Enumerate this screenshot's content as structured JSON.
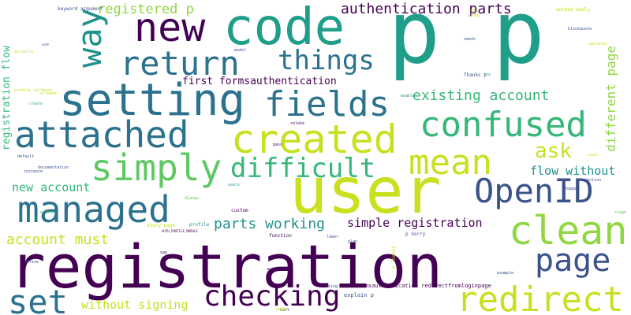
{
  "cloud": {
    "palette": {
      "purple": "#440154",
      "indigo": "#3b528b",
      "blue": "#31688e",
      "steel": "#2c728e",
      "teal": "#21918c",
      "sea": "#1f9e89",
      "jade": "#35b779",
      "green": "#5ec962",
      "lime": "#90d743",
      "yellow": "#c8e020",
      "gold": "#fde725"
    },
    "words": [
      {
        "text": "p p",
        "color": "#1f9e89"
      },
      {
        "text": "registration",
        "color": "#440154"
      },
      {
        "text": "user",
        "color": "#c8e020"
      },
      {
        "text": "code",
        "color": "#1f9e89"
      },
      {
        "text": "new",
        "color": "#440154"
      },
      {
        "text": "setting",
        "color": "#2c728e"
      },
      {
        "text": "return",
        "color": "#2c728e"
      },
      {
        "text": "things",
        "color": "#2c728e"
      },
      {
        "text": "fields",
        "color": "#2c728e"
      },
      {
        "text": "attached",
        "color": "#2c728e"
      },
      {
        "text": "created",
        "color": "#c8e020"
      },
      {
        "text": "confused",
        "color": "#35b779"
      },
      {
        "text": "simply",
        "color": "#5ec962"
      },
      {
        "text": "difficult",
        "color": "#35b779"
      },
      {
        "text": "mean",
        "color": "#c8e020"
      },
      {
        "text": "managed",
        "color": "#2c728e"
      },
      {
        "text": "OpenID",
        "color": "#3b528b"
      },
      {
        "text": "clean",
        "color": "#90d743"
      },
      {
        "text": "page",
        "color": "#3b528b"
      },
      {
        "text": "set",
        "color": "#2c728e"
      },
      {
        "text": "checking",
        "color": "#440154"
      },
      {
        "text": "redirect",
        "color": "#c8e020"
      },
      {
        "text": "way",
        "color": "#21918c"
      },
      {
        "text": "registered p",
        "color": "#90d743"
      },
      {
        "text": "authentication parts",
        "color": "#440154"
      },
      {
        "text": "existing account",
        "color": "#35b779"
      },
      {
        "text": "ask",
        "color": "#c8e020"
      },
      {
        "text": "flow without",
        "color": "#21918c"
      },
      {
        "text": "first formsauthentication",
        "color": "#440154"
      },
      {
        "text": "new account",
        "color": "#35b779"
      },
      {
        "text": "parts working",
        "color": "#21918c"
      },
      {
        "text": "simple registration",
        "color": "#440154"
      },
      {
        "text": "account must",
        "color": "#c8e020"
      },
      {
        "text": "without signing",
        "color": "#c8e020"
      },
      {
        "text": "different page",
        "color": "#90d743"
      },
      {
        "text": "registration flow",
        "color": "#35b779"
      },
      {
        "text": "formsauthentication redirectfromloginpage",
        "color": "#440154"
      },
      {
        "text": "explain p",
        "color": "#3b528b"
      },
      {
        "text": "keyword argument",
        "color": "#3b528b"
      },
      {
        "text": "worded badly",
        "color": "#c8e020"
      },
      {
        "text": "Thanks p",
        "color": "#3b528b"
      },
      {
        "text": "p Sorry",
        "color": "#3b528b"
      },
      {
        "text": "p Thanks",
        "color": "#c8e020"
      },
      {
        "text": "function",
        "color": "#440154"
      },
      {
        "text": "custom",
        "color": "#440154"
      },
      {
        "text": "profile",
        "color": "#21918c"
      },
      {
        "text": "every page",
        "color": "#c8e020"
      },
      {
        "text": "model",
        "color": "#3b528b"
      },
      {
        "text": "blockquote",
        "color": "#3b528b"
      },
      {
        "text": "default",
        "color": "#3b528b"
      },
      {
        "text": "documentation",
        "color": "#3b528b"
      },
      {
        "text": "instance",
        "color": "#3b528b"
      },
      {
        "text": "profile_callback",
        "color": "#c8e020"
      },
      {
        "text": "example",
        "color": "#3b528b"
      },
      {
        "text": "AUTH_PROFILE_MODULE",
        "color": "#440154"
      },
      {
        "text": "lets",
        "color": "#c8e020"
      },
      {
        "text": "along",
        "color": "#c8e020"
      },
      {
        "text": "needs",
        "color": "#3b528b"
      },
      {
        "text": "operates",
        "color": "#c8e020"
      },
      {
        "text": "use",
        "color": "#3b528b"
      },
      {
        "text": "say",
        "color": "#440154"
      },
      {
        "text": "stage",
        "color": "#5ec962"
      },
      {
        "text": "django",
        "color": "#5ec962"
      },
      {
        "text": "extend",
        "color": "#35b779"
      },
      {
        "text": "enable",
        "color": "#21918c"
      },
      {
        "text": "happen",
        "color": "#3b528b"
      },
      {
        "text": "relate",
        "color": "#440154"
      },
      {
        "text": "pass",
        "color": "#440154"
      },
      {
        "text": "accepts",
        "color": "#440154"
      },
      {
        "text": "plan",
        "color": "#3b528b"
      },
      {
        "text": "lower",
        "color": "#3b528b"
      },
      {
        "text": "users",
        "color": "#21918c"
      },
      {
        "text": "call",
        "color": "#3b528b"
      },
      {
        "text": "added",
        "color": "#c8e020"
      },
      {
        "text": "using",
        "color": "#3b528b"
      },
      {
        "text": "save",
        "color": "#c8e020"
      },
      {
        "text": "try",
        "color": "#21918c"
      },
      {
        "text": "question",
        "color": "#3b528b"
      },
      {
        "text": "already",
        "color": "#c8e020"
      },
      {
        "text": "create",
        "color": "#35b779"
      },
      {
        "text": "define",
        "color": "#3b528b"
      },
      {
        "text": "actually",
        "color": "#c8e020"
      }
    ]
  }
}
